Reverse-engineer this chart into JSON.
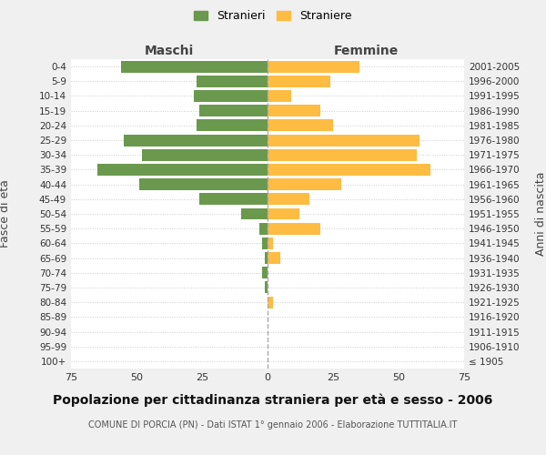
{
  "age_groups": [
    "100+",
    "95-99",
    "90-94",
    "85-89",
    "80-84",
    "75-79",
    "70-74",
    "65-69",
    "60-64",
    "55-59",
    "50-54",
    "45-49",
    "40-44",
    "35-39",
    "30-34",
    "25-29",
    "20-24",
    "15-19",
    "10-14",
    "5-9",
    "0-4"
  ],
  "birth_years": [
    "≤ 1905",
    "1906-1910",
    "1911-1915",
    "1916-1920",
    "1921-1925",
    "1926-1930",
    "1931-1935",
    "1936-1940",
    "1941-1945",
    "1946-1950",
    "1951-1955",
    "1956-1960",
    "1961-1965",
    "1966-1970",
    "1971-1975",
    "1976-1980",
    "1981-1985",
    "1986-1990",
    "1991-1995",
    "1996-2000",
    "2001-2005"
  ],
  "males": [
    0,
    0,
    0,
    0,
    0,
    1,
    2,
    1,
    2,
    3,
    10,
    26,
    49,
    65,
    48,
    55,
    27,
    26,
    28,
    27,
    56
  ],
  "females": [
    0,
    0,
    0,
    0,
    2,
    0,
    0,
    5,
    2,
    20,
    12,
    16,
    28,
    62,
    57,
    58,
    25,
    20,
    9,
    24,
    35
  ],
  "male_color": "#6a994e",
  "female_color": "#ffbc42",
  "background_color": "#f0f0f0",
  "plot_bg_color": "#ffffff",
  "grid_color": "#cccccc",
  "title": "Popolazione per cittadinanza straniera per età e sesso - 2006",
  "subtitle": "COMUNE DI PORCIA (PN) - Dati ISTAT 1° gennaio 2006 - Elaborazione TUTTITALIA.IT",
  "xlabel_left": "Maschi",
  "xlabel_right": "Femmine",
  "ylabel_left": "Fasce di età",
  "ylabel_right": "Anni di nascita",
  "legend_males": "Stranieri",
  "legend_females": "Straniere",
  "xlim": 75,
  "bar_height": 0.8,
  "center_line_color": "#aaaaaa"
}
